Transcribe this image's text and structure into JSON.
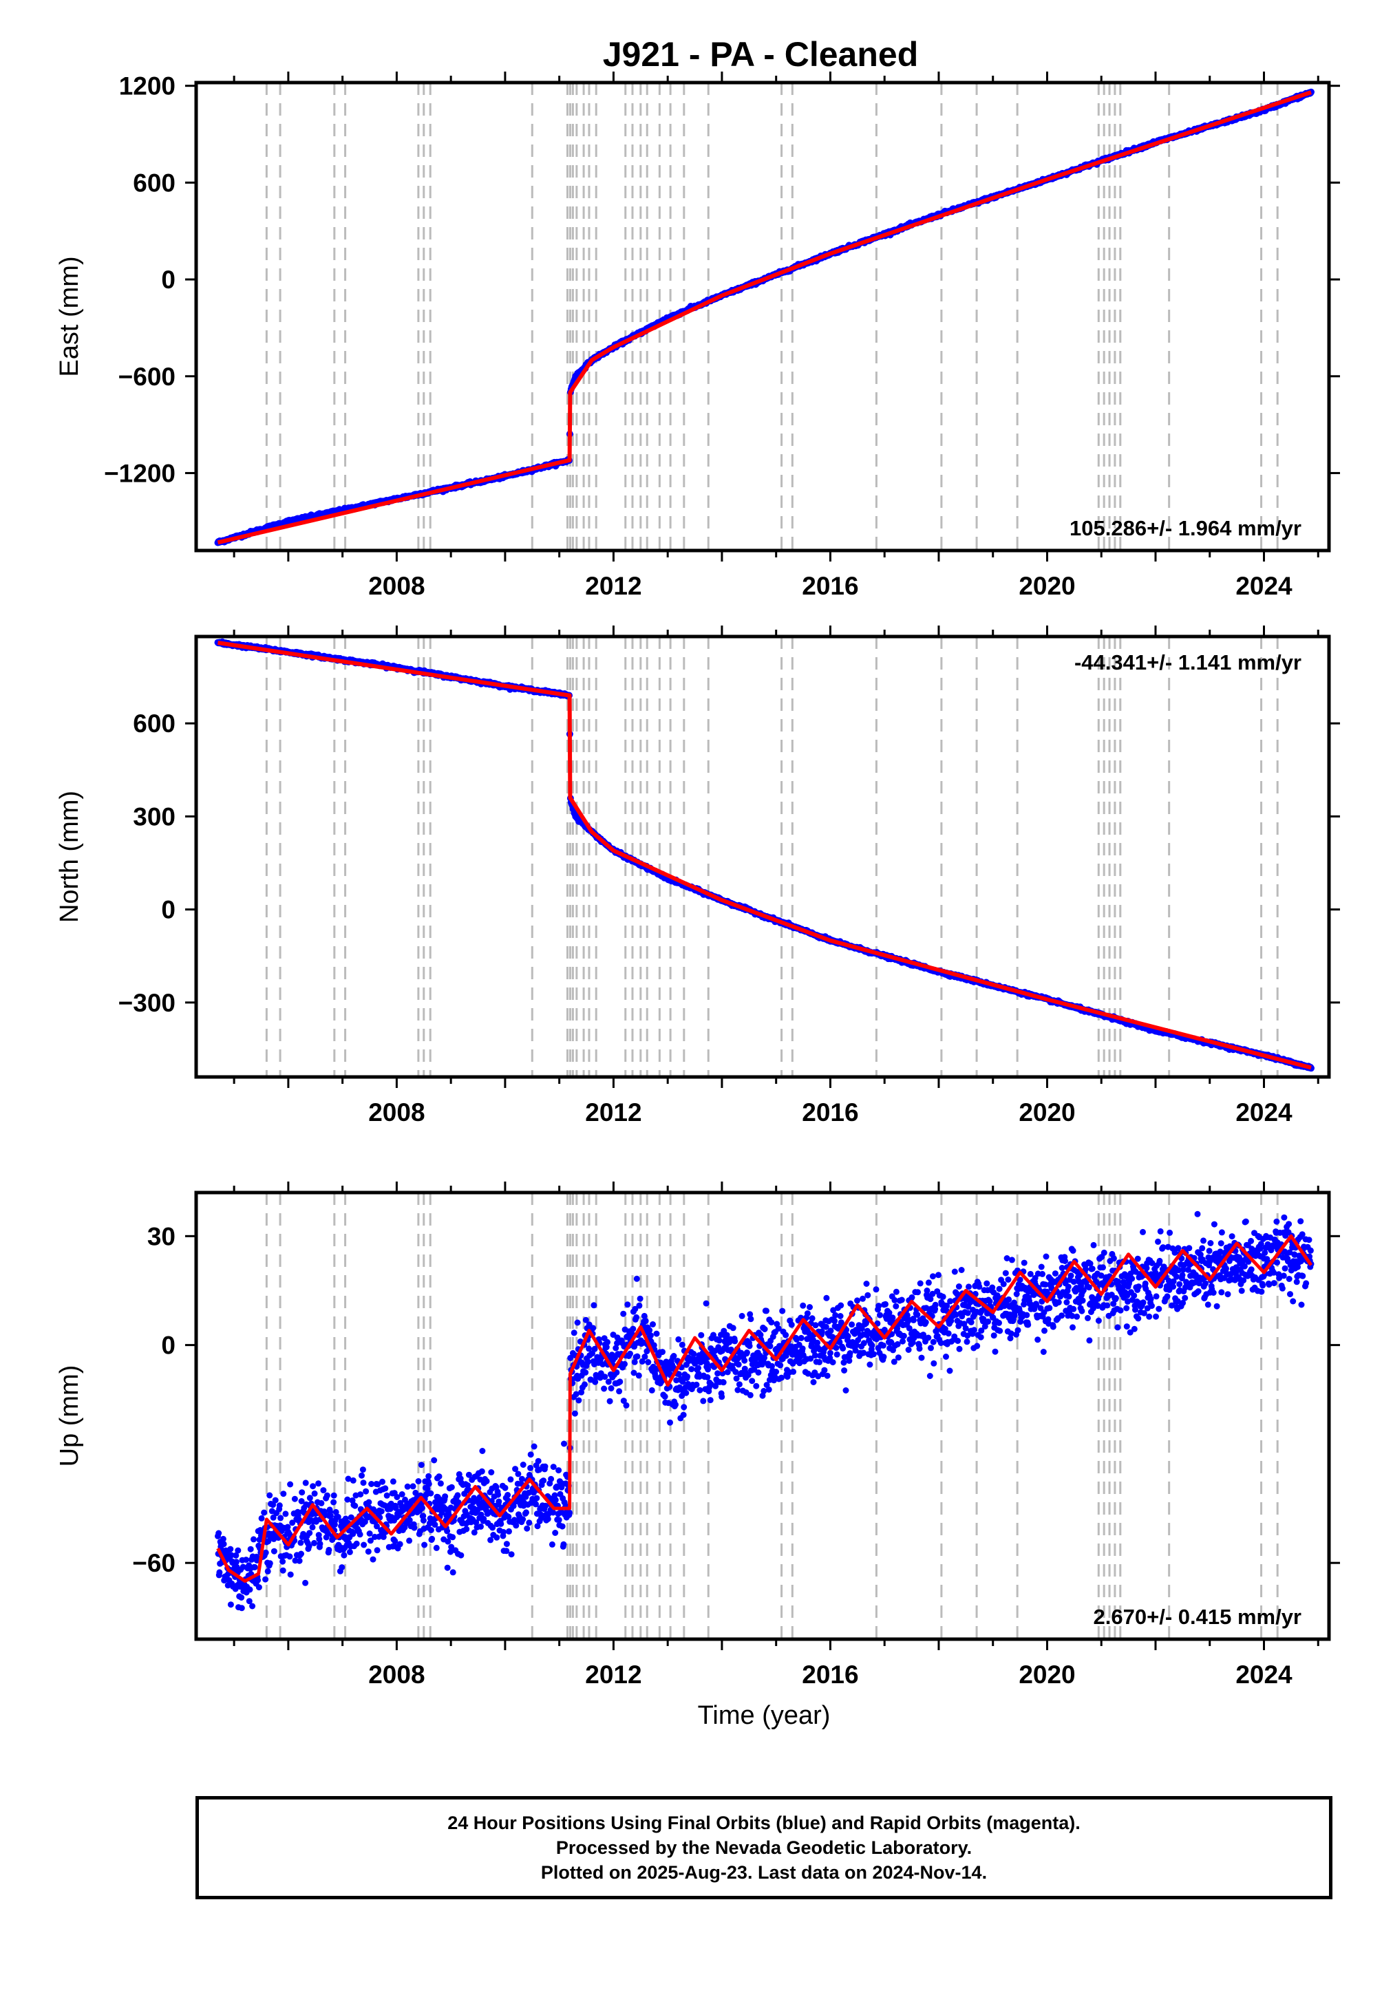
{
  "title": "J921  - PA - Cleaned",
  "xlabel": "Time (year)",
  "x_ticks": [
    2008,
    2012,
    2016,
    2020,
    2024
  ],
  "x_range": [
    2004.3,
    2025.2
  ],
  "equipment_changes": [
    2005.6,
    2005.85,
    2006.85,
    2007.05,
    2008.4,
    2008.5,
    2008.62,
    2010.5,
    2011.15,
    2011.2,
    2011.25,
    2011.32,
    2011.45,
    2011.55,
    2011.68,
    2012.22,
    2012.35,
    2012.5,
    2012.62,
    2012.85,
    2013.05,
    2013.3,
    2013.75,
    2015.1,
    2015.3,
    2016.85,
    2018.05,
    2018.7,
    2019.45,
    2020.95,
    2021.05,
    2021.15,
    2021.25,
    2021.35,
    2022.25,
    2023.95,
    2024.25
  ],
  "colors": {
    "final_orbits": "#0000ff",
    "model": "#ff0000",
    "steps": "#bbbbbb"
  },
  "footer": {
    "line1": "24 Hour Positions Using Final Orbits (blue) and Rapid Orbits (magenta).",
    "line2": "Processed by the Nevada Geodetic Laboratory.",
    "line3": "Plotted on 2025-Aug-23. Last data on 2024-Nov-14."
  },
  "chart_data": [
    {
      "type": "scatter",
      "ylabel": "East (mm)",
      "y_ticks": [
        -1200,
        -600,
        0,
        600,
        1200
      ],
      "ylim": [
        -1680,
        1220
      ],
      "rate_label": "105.286+/- 1.964 mm/yr",
      "rate_placement": "bottom-right",
      "series": [
        {
          "name": "Final Orbits",
          "color": "#0000ff",
          "x": [
            2004.7,
            2006.0,
            2008.0,
            2010.0,
            2011.19,
            2011.2,
            2011.3,
            2011.6,
            2012.0,
            2013.0,
            2014.0,
            2016.0,
            2018.0,
            2020.0,
            2022.0,
            2024.0,
            2024.87
          ],
          "y": [
            -1630,
            -1500,
            -1360,
            -1220,
            -1120,
            -700,
            -600,
            -500,
            -420,
            -240,
            -100,
            160,
            400,
            620,
            850,
            1050,
            1160
          ]
        },
        {
          "name": "Model",
          "color": "#ff0000",
          "x": [
            2004.7,
            2011.19,
            2011.2,
            2011.6,
            2012.0,
            2014.0,
            2016.0,
            2020.0,
            2024.87
          ],
          "y": [
            -1630,
            -1120,
            -700,
            -500,
            -420,
            -100,
            160,
            620,
            1160
          ]
        }
      ]
    },
    {
      "type": "scatter",
      "ylabel": "North (mm)",
      "y_ticks": [
        -300,
        0,
        300,
        600
      ],
      "ylim": [
        -540,
        880
      ],
      "rate_label": "-44.341+/- 1.141 mm/yr",
      "rate_placement": "top-right",
      "series": [
        {
          "name": "Final Orbits",
          "color": "#0000ff",
          "x": [
            2004.7,
            2006.0,
            2008.0,
            2010.0,
            2011.19,
            2011.2,
            2011.3,
            2011.6,
            2012.0,
            2013.0,
            2014.0,
            2016.0,
            2018.0,
            2020.0,
            2022.0,
            2024.0,
            2024.87
          ],
          "y": [
            860,
            830,
            780,
            720,
            690,
            360,
            300,
            250,
            190,
            100,
            30,
            -100,
            -200,
            -290,
            -390,
            -470,
            -510
          ]
        },
        {
          "name": "Model",
          "color": "#ff0000",
          "x": [
            2004.7,
            2011.19,
            2011.2,
            2011.6,
            2012.0,
            2014.0,
            2016.0,
            2020.0,
            2024.87
          ],
          "y": [
            860,
            690,
            360,
            250,
            190,
            30,
            -100,
            -290,
            -510
          ]
        }
      ]
    },
    {
      "type": "scatter",
      "ylabel": "Up (mm)",
      "y_ticks": [
        -60,
        0,
        30
      ],
      "ylim": [
        -81,
        42
      ],
      "rate_label": "2.670+/- 0.415 mm/yr",
      "rate_placement": "bottom-right",
      "series": [
        {
          "name": "Final Orbits",
          "color": "#0000ff",
          "noise": 5,
          "x": [
            2004.7,
            2005.0,
            2005.3,
            2005.55,
            2005.8,
            2006.0,
            2006.5,
            2007.0,
            2007.5,
            2008.0,
            2008.5,
            2009.0,
            2009.5,
            2010.0,
            2010.5,
            2011.0,
            2011.19,
            2011.2,
            2011.5,
            2012.0,
            2012.5,
            2013.0,
            2014.0,
            2015.0,
            2016.0,
            2017.0,
            2018.0,
            2019.0,
            2020.0,
            2021.0,
            2022.0,
            2023.0,
            2024.0,
            2024.87
          ],
          "y": [
            -58,
            -63,
            -65,
            -52,
            -50,
            -53,
            -46,
            -52,
            -45,
            -49,
            -43,
            -48,
            -42,
            -47,
            -40,
            -45,
            -45,
            -8,
            -2,
            -6,
            3,
            -10,
            -5,
            -2,
            2,
            5,
            7,
            10,
            14,
            16,
            18,
            20,
            24,
            25
          ]
        },
        {
          "name": "Model",
          "color": "#ff0000",
          "x": [
            2004.7,
            2004.9,
            2005.2,
            2005.45,
            2005.6,
            2006.0,
            2006.45,
            2006.9,
            2007.45,
            2007.9,
            2008.45,
            2008.9,
            2009.45,
            2009.9,
            2010.45,
            2010.9,
            2011.19,
            2011.2,
            2011.55,
            2012.0,
            2012.5,
            2013.0,
            2013.5,
            2014.0,
            2014.5,
            2015.0,
            2015.5,
            2016.0,
            2016.5,
            2017.0,
            2017.5,
            2018.0,
            2018.5,
            2019.0,
            2019.5,
            2020.0,
            2020.5,
            2021.0,
            2021.5,
            2022.0,
            2022.5,
            2023.0,
            2023.5,
            2024.0,
            2024.5,
            2024.87
          ],
          "y": [
            -56,
            -62,
            -65,
            -63,
            -48,
            -55,
            -44,
            -53,
            -45,
            -52,
            -42,
            -50,
            -39,
            -47,
            -37,
            -45,
            -45,
            -8,
            4,
            -7,
            5,
            -11,
            2,
            -7,
            4,
            -4,
            7,
            -1,
            11,
            2,
            12,
            5,
            15,
            9,
            20,
            12,
            23,
            14,
            25,
            16,
            26,
            18,
            28,
            20,
            30,
            22
          ]
        }
      ]
    }
  ]
}
